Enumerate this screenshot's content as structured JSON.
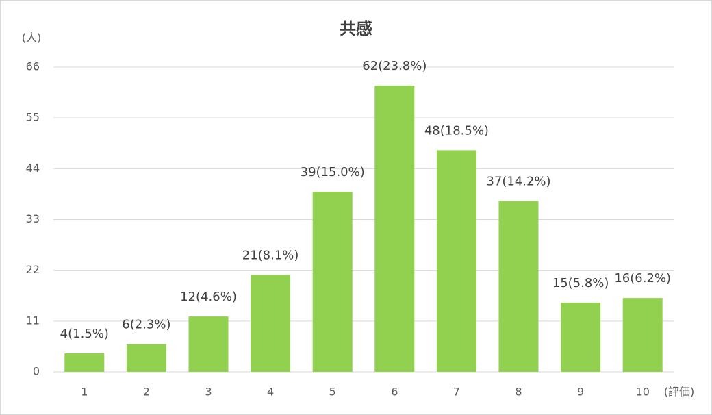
{
  "chart_data": {
    "type": "bar",
    "title": "共感",
    "y_axis_label": "(人)",
    "x_axis_label": "(評価)",
    "categories": [
      "1",
      "2",
      "3",
      "4",
      "5",
      "6",
      "7",
      "8",
      "9",
      "10"
    ],
    "values": [
      4,
      6,
      12,
      21,
      39,
      62,
      48,
      37,
      15,
      16
    ],
    "value_labels": [
      "4(1.5%)",
      "6(2.3%)",
      "12(4.6%)",
      "21(8.1%)",
      "39(15.0%)",
      "62(23.8%)",
      "48(18.5%)",
      "37(14.2%)",
      "15(5.8%)",
      "16(6.2%)"
    ],
    "color": "#92d050",
    "ylim": [
      0,
      66
    ],
    "yticks": [
      0,
      11,
      22,
      33,
      44,
      55,
      66
    ],
    "grid": true
  }
}
